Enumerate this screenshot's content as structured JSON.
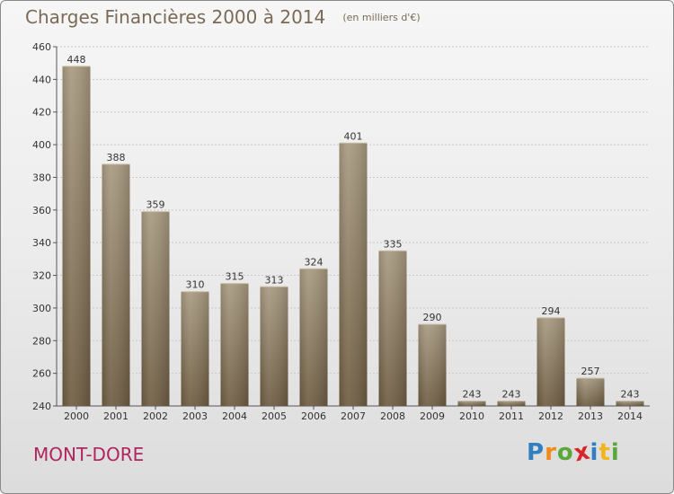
{
  "header": {
    "title": "Charges Financières 2000 à 2014",
    "subtitle": "(en milliers d'€)"
  },
  "footer": {
    "commune": "MONT-DORE",
    "logo": [
      "P",
      "r",
      "o",
      "x",
      "i",
      "t",
      "i"
    ]
  },
  "colors": {
    "bar_top": "#a89a80",
    "bar_bottom": "#6e5c42",
    "title": "#7a6a55",
    "commune": "#b0245f",
    "logo": [
      "#2f7fc1",
      "#f28a1a",
      "#5aa83c",
      "#d6262c",
      "#2f7fc1",
      "#f2b51a",
      "#5aa83c"
    ]
  },
  "chart_data": {
    "type": "bar",
    "categories": [
      "2000",
      "2001",
      "2002",
      "2003",
      "2004",
      "2005",
      "2006",
      "2007",
      "2008",
      "2009",
      "2010",
      "2011",
      "2012",
      "2013",
      "2014"
    ],
    "values": [
      448,
      388,
      359,
      310,
      315,
      313,
      324,
      401,
      335,
      290,
      243,
      243,
      294,
      257,
      243
    ],
    "ylim": [
      240,
      460
    ],
    "yticks": [
      240,
      260,
      280,
      300,
      320,
      340,
      360,
      380,
      400,
      420,
      440,
      460
    ],
    "grid": true
  }
}
